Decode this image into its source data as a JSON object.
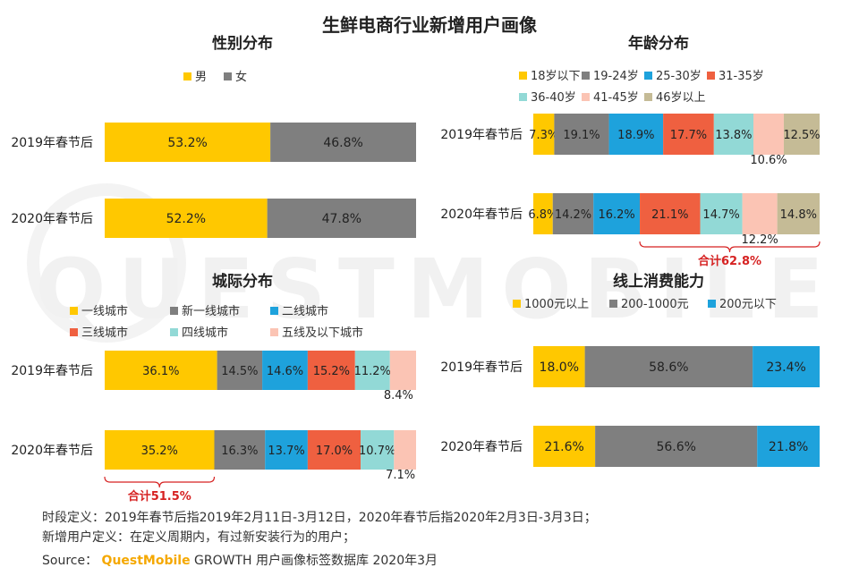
{
  "title": "生鲜电商行业新增用户画像",
  "watermark": "QUESTMOBILE",
  "chart_data": [
    {
      "id": "gender",
      "type": "bar",
      "stacked": true,
      "orientation": "horizontal",
      "title": "性别分布",
      "categories": [
        "2019年春节后",
        "2020年春节后"
      ],
      "series": [
        {
          "name": "男",
          "values": [
            53.2,
            52.2
          ],
          "color": "#ffc800"
        },
        {
          "name": "女",
          "values": [
            46.8,
            47.8
          ],
          "color": "#7f7f7f"
        }
      ],
      "value_suffix": "%"
    },
    {
      "id": "age",
      "type": "bar",
      "stacked": true,
      "orientation": "horizontal",
      "title": "年龄分布",
      "categories": [
        "2019年春节后",
        "2020年春节后"
      ],
      "series": [
        {
          "name": "18岁以下",
          "values": [
            7.3,
            6.8
          ],
          "color": "#ffc800"
        },
        {
          "name": "19-24岁",
          "values": [
            19.1,
            14.2
          ],
          "color": "#7f7f7f"
        },
        {
          "name": "25-30岁",
          "values": [
            18.9,
            16.2
          ],
          "color": "#1ea2dc"
        },
        {
          "name": "31-35岁",
          "values": [
            17.7,
            21.1
          ],
          "color": "#ef6040"
        },
        {
          "name": "36-40岁",
          "values": [
            13.8,
            14.7
          ],
          "color": "#92d9d6"
        },
        {
          "name": "41-45岁",
          "values": [
            10.6,
            12.2
          ],
          "color": "#fbc4b4"
        },
        {
          "name": "46岁以上",
          "values": [
            12.5,
            14.8
          ],
          "color": "#c5bb96"
        }
      ],
      "value_suffix": "%",
      "annotation": "合计62.8%"
    },
    {
      "id": "city",
      "type": "bar",
      "stacked": true,
      "orientation": "horizontal",
      "title": "城际分布",
      "categories": [
        "2019年春节后",
        "2020年春节后"
      ],
      "series": [
        {
          "name": "一线城市",
          "values": [
            36.1,
            35.2
          ],
          "color": "#ffc800"
        },
        {
          "name": "新一线城市",
          "values": [
            14.5,
            16.3
          ],
          "color": "#7f7f7f"
        },
        {
          "name": "二线城市",
          "values": [
            14.6,
            13.7
          ],
          "color": "#1ea2dc"
        },
        {
          "name": "三线城市",
          "values": [
            15.2,
            17.0
          ],
          "color": "#ef6040"
        },
        {
          "name": "四线城市",
          "values": [
            11.2,
            10.7
          ],
          "color": "#92d9d6"
        },
        {
          "name": "五线及以下城市",
          "values": [
            8.4,
            7.1
          ],
          "color": "#fbc4b4"
        }
      ],
      "value_suffix": "%",
      "annotation": "合计51.5%"
    },
    {
      "id": "spend",
      "type": "bar",
      "stacked": true,
      "orientation": "horizontal",
      "title": "线上消费能力",
      "categories": [
        "2019年春节后",
        "2020年春节后"
      ],
      "series": [
        {
          "name": "1000元以上",
          "values": [
            18.0,
            21.6
          ],
          "color": "#ffc800"
        },
        {
          "name": "200-1000元",
          "values": [
            58.6,
            56.6
          ],
          "color": "#7f7f7f"
        },
        {
          "name": "200元以下",
          "values": [
            23.4,
            21.8
          ],
          "color": "#1ea2dc"
        }
      ],
      "value_suffix": "%"
    }
  ],
  "footer": {
    "line1": "时段定义：2019年春节后指2019年2月11日-3月12日，2020年春节后指2020年2月3日-3月3日；",
    "line2": "新增用户定义：在定义周期内，有过新安装行为的用户；",
    "source_label": "Source：",
    "source_brand": "QuestMobile",
    "source_rest": " GROWTH 用户画像标签数据库 2020年3月"
  }
}
